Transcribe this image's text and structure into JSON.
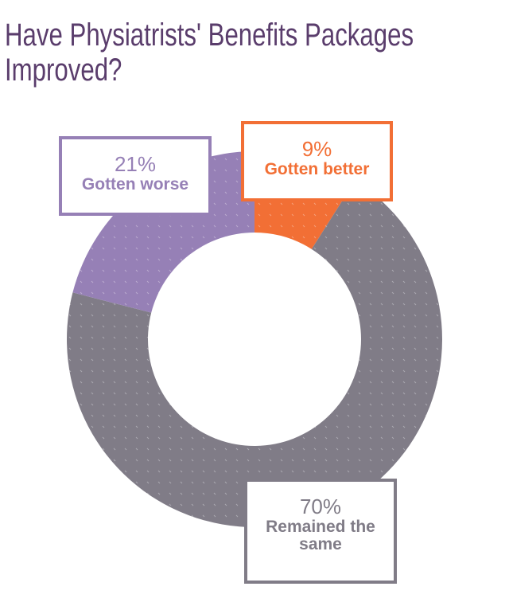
{
  "title": "Have Physiatrists' Benefits Packages Improved?",
  "chart_data": {
    "type": "pie",
    "donut": true,
    "title": "Have Physiatrists' Benefits Packages Improved?",
    "slices": [
      {
        "label": "Gotten better",
        "value": 9,
        "value_label": "9%",
        "color": "#f26f35"
      },
      {
        "label": "Remained the same",
        "value": 70,
        "value_label": "70%",
        "color": "#807c87"
      },
      {
        "label": "Gotten worse",
        "value": 21,
        "value_label": "21%",
        "color": "#9680b6"
      }
    ]
  }
}
